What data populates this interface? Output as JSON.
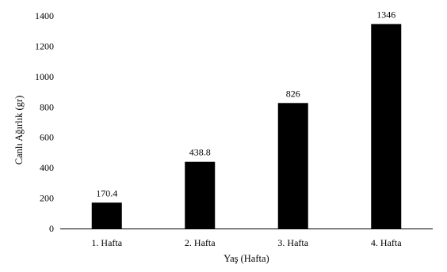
{
  "chart_data": {
    "type": "bar",
    "categories": [
      "1. Hafta",
      "2. Hafta",
      "3. Hafta",
      "4. Hafta"
    ],
    "values": [
      170.4,
      438.8,
      826,
      1346
    ],
    "value_labels": [
      "170.4",
      "438.8",
      "826",
      "1346"
    ],
    "title": "",
    "xlabel": "Yaş (Hafta)",
    "ylabel": "Canlı Ağırlık (gr)",
    "ylim": [
      0,
      1400
    ],
    "yticks": [
      "0",
      "200",
      "400",
      "600",
      "800",
      "1000",
      "1200",
      "1400"
    ],
    "grid": false,
    "legend": "none",
    "bar_color": "#000000"
  }
}
